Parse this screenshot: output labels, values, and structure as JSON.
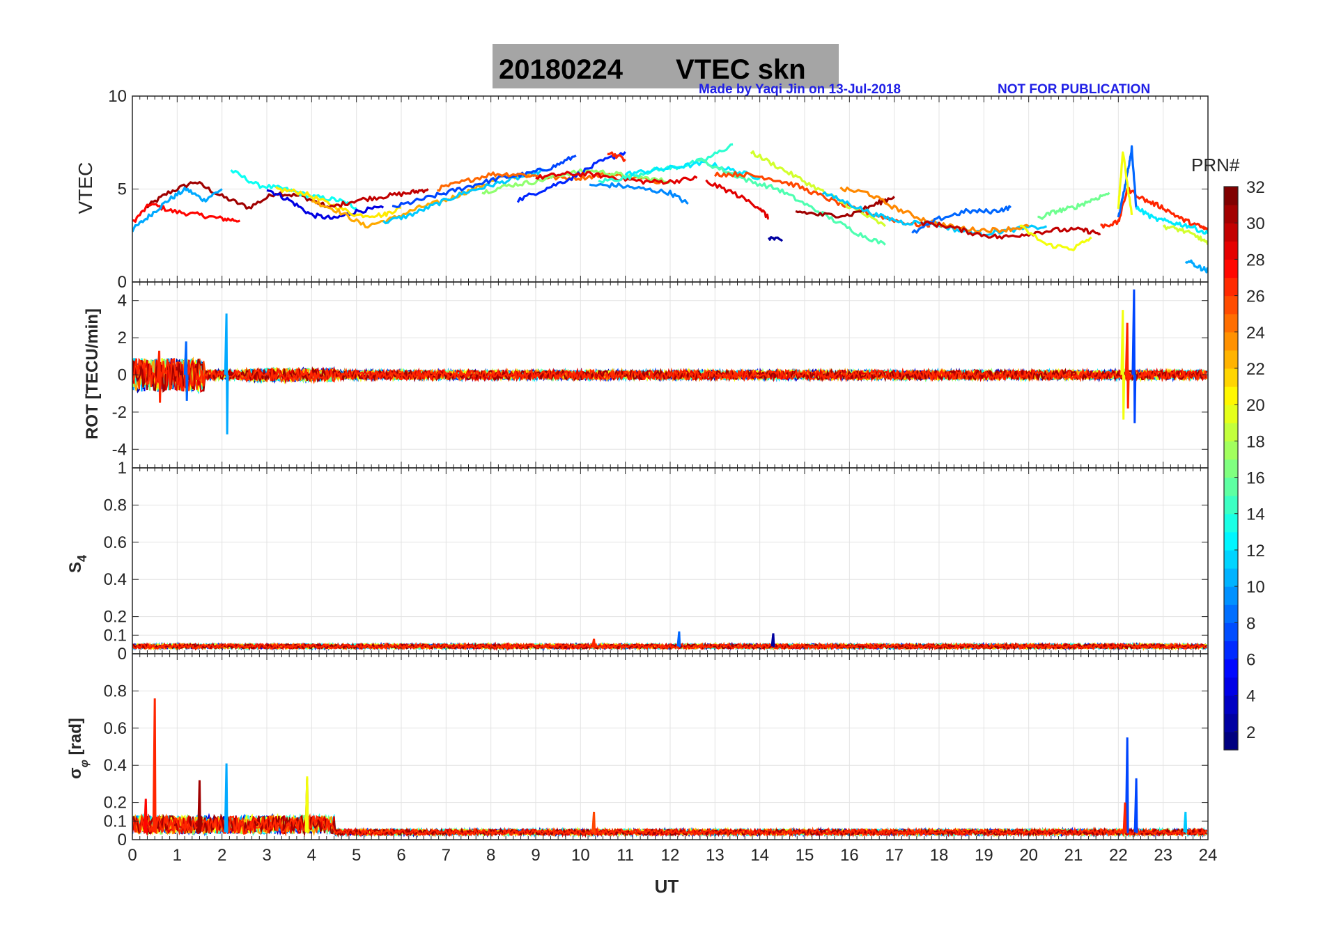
{
  "figure": {
    "title_date": "20180224",
    "title_rest": "VTEC  skn",
    "credit": "Made by Yaqi Jin on 13-Jul-2018",
    "notice": "NOT FOR PUBLICATION",
    "xlabel": "UT",
    "colorbar_title": "PRN#"
  },
  "chart_data": [
    {
      "type": "line",
      "panel": "vtec",
      "ylabel": "VTEC",
      "xlim": [
        0,
        24
      ],
      "ylim": [
        0,
        10
      ],
      "yticks": [
        0,
        5,
        10
      ],
      "xticks": [
        0,
        1,
        2,
        3,
        4,
        5,
        6,
        7,
        8,
        9,
        10,
        11,
        12,
        13,
        14,
        15,
        16,
        17,
        18,
        19,
        20,
        21,
        22,
        23,
        24
      ],
      "grid": true,
      "color_by": "PRN",
      "series": [
        {
          "prn": 31,
          "x": [
            0.3,
            0.8,
            1.4,
            2.0,
            2.6,
            3.2,
            3.8,
            4.4
          ],
          "y": [
            4.0,
            4.8,
            5.4,
            4.6,
            4.0,
            4.8,
            4.6,
            4.0
          ]
        },
        {
          "prn": 28,
          "x": [
            0.0,
            0.4,
            0.9,
            1.5,
            2.0,
            2.4
          ],
          "y": [
            3.2,
            4.2,
            3.8,
            3.6,
            3.4,
            3.3
          ]
        },
        {
          "prn": 10,
          "x": [
            0.0,
            0.4,
            0.8,
            1.2,
            1.6,
            2.0
          ],
          "y": [
            2.8,
            3.6,
            4.4,
            5.0,
            4.4,
            5.0
          ]
        },
        {
          "prn": 13,
          "x": [
            2.2,
            2.8,
            3.4,
            4.0,
            4.6,
            5.0
          ],
          "y": [
            6.0,
            5.2,
            5.0,
            4.6,
            4.4,
            4.0
          ]
        },
        {
          "prn": 4,
          "x": [
            3.0,
            3.5,
            4.0,
            4.5,
            5.0,
            5.6
          ],
          "y": [
            5.0,
            4.4,
            3.6,
            3.4,
            3.8,
            4.0
          ]
        },
        {
          "prn": 21,
          "x": [
            3.2,
            3.8,
            4.4,
            5.0,
            5.6,
            6.0
          ],
          "y": [
            5.0,
            4.8,
            4.2,
            3.6,
            3.6,
            4.0
          ]
        },
        {
          "prn": 23,
          "x": [
            4.0,
            4.6,
            5.2,
            5.8,
            6.4,
            7.0,
            7.6,
            8.2,
            9.0
          ],
          "y": [
            4.4,
            3.8,
            3.0,
            3.4,
            4.0,
            4.4,
            5.0,
            5.6,
            5.8
          ]
        },
        {
          "prn": 30,
          "x": [
            4.4,
            5.0,
            5.6,
            6.2,
            6.6
          ],
          "y": [
            4.0,
            4.4,
            4.6,
            4.8,
            5.0
          ]
        },
        {
          "prn": 11,
          "x": [
            5.6,
            6.2,
            6.8,
            7.4,
            8.0,
            8.6,
            9.2
          ],
          "y": [
            3.2,
            3.6,
            4.2,
            4.8,
            5.2,
            5.6,
            6.0
          ]
        },
        {
          "prn": 7,
          "x": [
            5.8,
            6.4,
            7.0,
            7.6,
            8.2,
            8.8,
            9.4,
            9.9
          ],
          "y": [
            4.0,
            4.4,
            4.8,
            5.2,
            5.6,
            5.8,
            6.2,
            6.8
          ]
        },
        {
          "prn": 25,
          "x": [
            6.8,
            7.4,
            8.0,
            8.6,
            9.4,
            10.0,
            10.6,
            11.2,
            11.8
          ],
          "y": [
            5.0,
            5.4,
            5.8,
            5.8,
            5.6,
            5.6,
            5.8,
            5.6,
            5.4
          ]
        },
        {
          "prn": 17,
          "x": [
            7.8,
            8.4,
            9.0,
            9.6,
            10.2,
            10.8,
            11.4,
            12.0
          ],
          "y": [
            4.8,
            5.2,
            5.4,
            5.8,
            6.0,
            5.8,
            5.6,
            5.4
          ]
        },
        {
          "prn": 6,
          "x": [
            8.6,
            9.2,
            9.8,
            10.4,
            11.0
          ],
          "y": [
            4.4,
            5.0,
            5.6,
            6.4,
            7.0
          ]
        },
        {
          "prn": 29,
          "x": [
            9.0,
            9.6,
            10.2,
            10.8,
            11.4,
            12.0,
            12.6
          ],
          "y": [
            5.6,
            5.8,
            5.8,
            5.6,
            5.4,
            5.4,
            5.6
          ]
        },
        {
          "prn": 9,
          "x": [
            10.2,
            10.8,
            11.4,
            12.0,
            12.4
          ],
          "y": [
            5.2,
            5.2,
            5.0,
            4.8,
            4.2
          ]
        },
        {
          "prn": 14,
          "x": [
            10.4,
            11.0,
            11.6,
            12.2,
            12.8,
            13.4
          ],
          "y": [
            5.4,
            5.6,
            6.0,
            6.2,
            6.6,
            7.4
          ]
        },
        {
          "prn": 12,
          "x": [
            11.0,
            11.6,
            12.2,
            12.8,
            13.4,
            14.0
          ],
          "y": [
            5.8,
            6.0,
            6.2,
            6.4,
            6.0,
            5.6
          ]
        },
        {
          "prn": 27,
          "x": [
            10.6,
            11.0
          ],
          "y": [
            7.0,
            6.6
          ]
        },
        {
          "prn": 15,
          "x": [
            12.6,
            13.2,
            13.8,
            14.4,
            15.0,
            15.6,
            16.2,
            16.8
          ],
          "y": [
            6.6,
            6.0,
            5.4,
            5.0,
            4.2,
            3.4,
            2.6,
            2.0
          ]
        },
        {
          "prn": 26,
          "x": [
            13.0,
            13.6,
            14.2,
            14.8,
            15.4,
            16.0,
            16.6,
            17.2,
            17.8
          ],
          "y": [
            5.8,
            5.8,
            5.6,
            5.2,
            4.6,
            4.0,
            3.6,
            3.2,
            3.0
          ]
        },
        {
          "prn": 19,
          "x": [
            13.8,
            14.4,
            15.0,
            15.6,
            16.2,
            16.8
          ],
          "y": [
            7.0,
            6.2,
            5.4,
            4.6,
            3.8,
            3.0
          ]
        },
        {
          "prn": 29,
          "x": [
            12.8,
            13.4,
            14.0,
            14.2
          ],
          "y": [
            5.4,
            4.8,
            4.0,
            3.4
          ]
        },
        {
          "prn": 2,
          "x": [
            14.2,
            14.5
          ],
          "y": [
            2.4,
            2.2
          ]
        },
        {
          "prn": 31,
          "x": [
            14.8,
            15.4,
            16.0,
            16.6,
            17.0
          ],
          "y": [
            3.8,
            3.6,
            3.6,
            4.2,
            4.6
          ]
        },
        {
          "prn": 11,
          "x": [
            15.4,
            16.0,
            16.6,
            17.2,
            17.8,
            18.4,
            19.0,
            19.6,
            20.4
          ],
          "y": [
            4.8,
            4.2,
            3.6,
            3.2,
            3.2,
            2.8,
            2.6,
            2.8,
            3.0
          ]
        },
        {
          "prn": 24,
          "x": [
            15.8,
            16.4,
            17.0,
            17.6,
            18.2,
            18.8,
            19.4,
            20.0
          ],
          "y": [
            5.0,
            4.8,
            4.0,
            3.4,
            3.0,
            2.8,
            2.8,
            3.0
          ]
        },
        {
          "prn": 8,
          "x": [
            17.4,
            18.0,
            18.6,
            19.2,
            19.6
          ],
          "y": [
            2.6,
            3.4,
            3.8,
            3.8,
            4.0
          ]
        },
        {
          "prn": 30,
          "x": [
            17.6,
            18.2,
            18.8,
            19.4,
            20.0,
            20.6,
            21.2,
            21.6
          ],
          "y": [
            3.2,
            3.0,
            2.6,
            2.4,
            2.6,
            2.8,
            2.8,
            2.6
          ]
        },
        {
          "prn": 20,
          "x": [
            19.8,
            20.4,
            21.0,
            21.4
          ],
          "y": [
            3.0,
            2.0,
            1.8,
            2.4
          ]
        },
        {
          "prn": 16,
          "x": [
            20.2,
            20.6,
            21.0,
            21.4,
            21.8
          ],
          "y": [
            3.4,
            3.8,
            4.0,
            4.4,
            4.8
          ]
        },
        {
          "prn": 27,
          "x": [
            21.6,
            22.0,
            22.2,
            22.6,
            23.0,
            23.4,
            23.8,
            24.0
          ],
          "y": [
            3.0,
            3.2,
            5.0,
            4.4,
            4.0,
            3.4,
            3.0,
            2.8
          ]
        },
        {
          "prn": 8,
          "x": [
            22.0,
            22.2,
            22.3,
            22.4
          ],
          "y": [
            3.4,
            5.8,
            7.2,
            4.0
          ]
        },
        {
          "prn": 20,
          "x": [
            22.0,
            22.1,
            22.3
          ],
          "y": [
            4.0,
            7.0,
            3.6
          ]
        },
        {
          "prn": 12,
          "x": [
            22.4,
            22.8,
            23.2,
            23.6,
            24.0
          ],
          "y": [
            4.0,
            3.4,
            3.2,
            3.0,
            2.6
          ]
        },
        {
          "prn": 19,
          "x": [
            23.0,
            23.4,
            23.8,
            24.0
          ],
          "y": [
            3.0,
            2.8,
            2.4,
            2.0
          ]
        },
        {
          "prn": 10,
          "x": [
            23.5,
            23.8,
            24.0
          ],
          "y": [
            1.2,
            0.8,
            0.6
          ]
        }
      ]
    },
    {
      "type": "line",
      "panel": "rot",
      "ylabel": "ROT [TECU/min]",
      "xlim": [
        0,
        24
      ],
      "ylim": [
        -5,
        5
      ],
      "yticks": [
        -4,
        -2,
        0,
        2,
        4
      ],
      "grid": true,
      "summary": "Values mostly within +/-0.4 TECU/min; bursts up to +/-1.5 near 0-1.5 UT, +/-3.3 near 2.1 UT, and +/-4.6 near 22.2 UT",
      "spikes": [
        {
          "prn": 10,
          "x": 2.1,
          "y": [
            3.3,
            -3.2
          ]
        },
        {
          "prn": 8,
          "x": 1.2,
          "y": [
            1.8,
            -1.4
          ]
        },
        {
          "prn": 27,
          "x": 0.6,
          "y": [
            1.3,
            -1.5
          ]
        },
        {
          "prn": 20,
          "x": 22.1,
          "y": [
            3.5,
            -2.4
          ]
        },
        {
          "prn": 7,
          "x": 22.35,
          "y": [
            4.6,
            -2.6
          ]
        },
        {
          "prn": 27,
          "x": 22.2,
          "y": [
            2.8,
            -1.8
          ]
        }
      ]
    },
    {
      "type": "line",
      "panel": "s4",
      "ylabel": "S4",
      "xlim": [
        0,
        24
      ],
      "ylim": [
        0,
        1
      ],
      "yticks": [
        0,
        0.1,
        0.2,
        0.4,
        0.6,
        0.8,
        1
      ],
      "grid": true,
      "summary": "S4 stays near 0.03-0.06 all day",
      "spikes": [
        {
          "prn": 8,
          "x": 12.2,
          "y": 0.12
        },
        {
          "prn": 2,
          "x": 14.3,
          "y": 0.11
        },
        {
          "prn": 27,
          "x": 10.3,
          "y": 0.08
        }
      ]
    },
    {
      "type": "line",
      "panel": "sigma_phi",
      "ylabel": "σφ [rad]",
      "xlim": [
        0,
        24
      ],
      "ylim": [
        0,
        1
      ],
      "yticks": [
        0,
        0.1,
        0.2,
        0.4,
        0.6,
        0.8
      ],
      "grid": true,
      "summary": "Baseline near 0.03-0.06 rad, enhanced 0-4 UT",
      "spikes": [
        {
          "prn": 27,
          "x": 0.5,
          "y": 0.76
        },
        {
          "prn": 31,
          "x": 1.5,
          "y": 0.32
        },
        {
          "prn": 10,
          "x": 2.1,
          "y": 0.41
        },
        {
          "prn": 31,
          "x": 3.9,
          "y": 0.33
        },
        {
          "prn": 20,
          "x": 3.9,
          "y": 0.34
        },
        {
          "prn": 28,
          "x": 0.3,
          "y": 0.22
        },
        {
          "prn": 7,
          "x": 22.2,
          "y": 0.55
        },
        {
          "prn": 7,
          "x": 22.4,
          "y": 0.33
        },
        {
          "prn": 27,
          "x": 22.15,
          "y": 0.2
        },
        {
          "prn": 11,
          "x": 23.5,
          "y": 0.15
        },
        {
          "prn": 26,
          "x": 10.3,
          "y": 0.15
        }
      ]
    }
  ],
  "colorbar": {
    "label": "PRN#",
    "min": 1,
    "max": 32,
    "ticks": [
      2,
      4,
      6,
      8,
      10,
      12,
      14,
      16,
      18,
      20,
      22,
      24,
      26,
      28,
      30,
      32
    ],
    "colormap": "jet"
  }
}
